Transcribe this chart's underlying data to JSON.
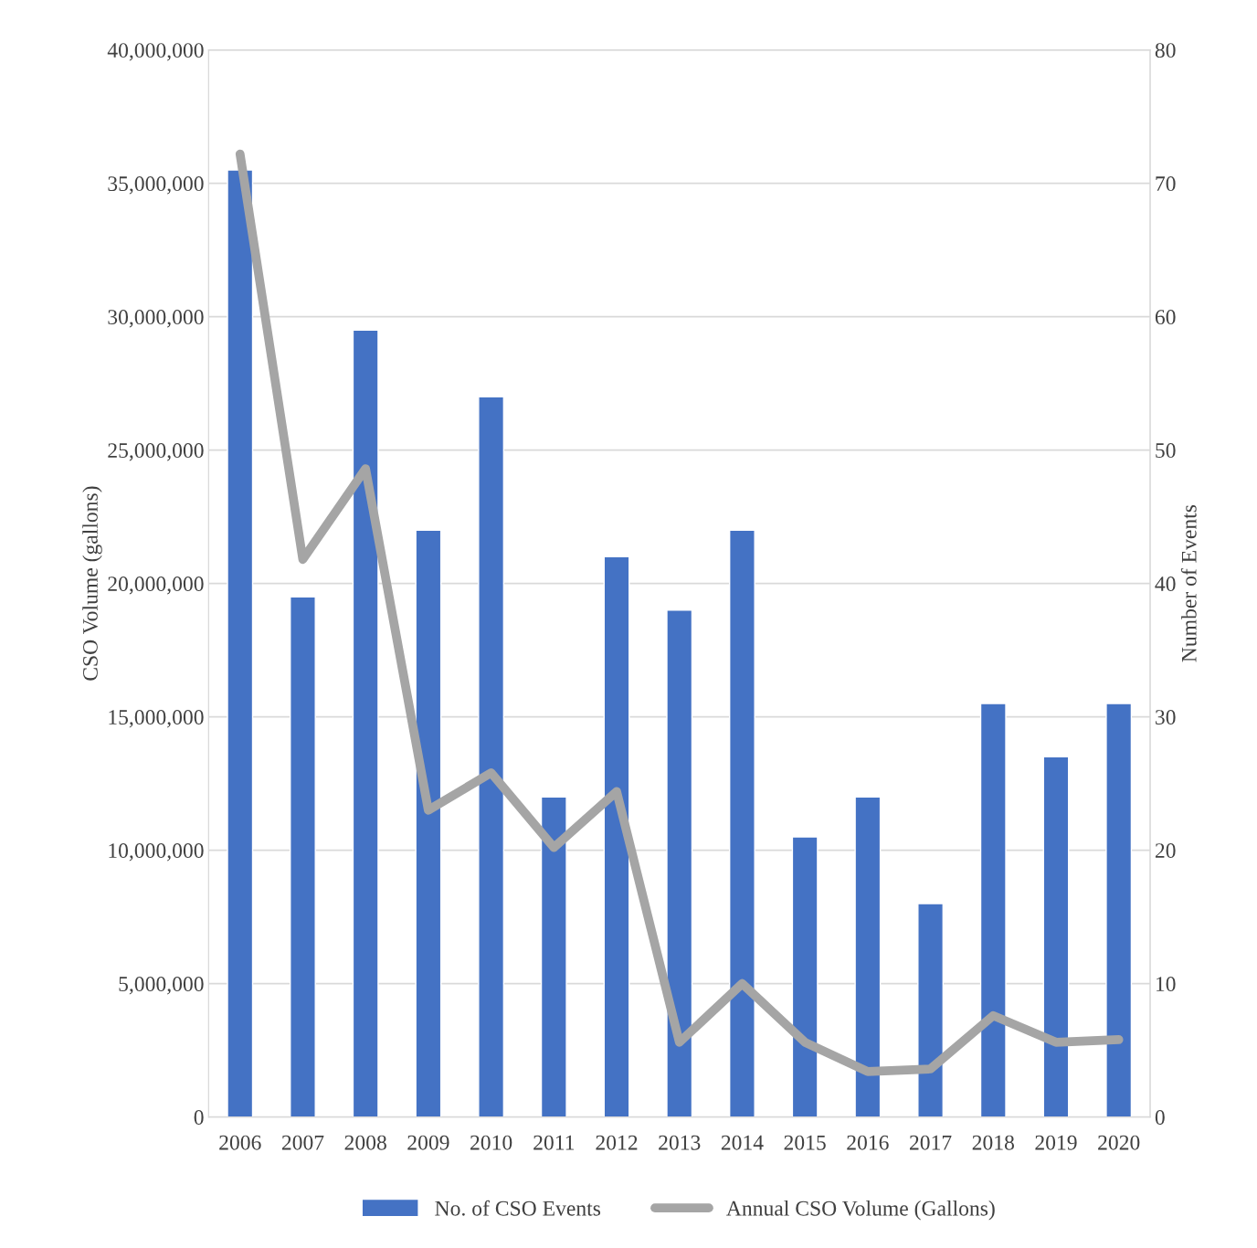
{
  "chart_data": {
    "type": "bar",
    "categories": [
      "2006",
      "2007",
      "2008",
      "2009",
      "2010",
      "2011",
      "2012",
      "2013",
      "2014",
      "2015",
      "2016",
      "2017",
      "2018",
      "2019",
      "2020"
    ],
    "series": [
      {
        "name": "No. of CSO Events",
        "axis": "y2",
        "color": "#4472c4",
        "values": [
          71,
          39,
          59,
          44,
          54,
          24,
          42,
          38,
          44,
          21,
          24,
          16,
          31,
          27,
          31
        ]
      },
      {
        "name": "Annual CSO Volume (Gallons)",
        "type": "line",
        "axis": "y",
        "color": "#a5a5a5",
        "values": [
          36100000,
          20900000,
          24300000,
          11500000,
          12900000,
          10100000,
          12200000,
          2800000,
          5000000,
          2800000,
          1700000,
          1800000,
          3800000,
          2800000,
          2900000
        ]
      }
    ],
    "ylabel": "CSO Volume (gallons)",
    "y2label": "Number of Events",
    "ylim": [
      0,
      40000000
    ],
    "yticks": [
      {
        "value": 0,
        "label": "0"
      },
      {
        "value": 5000000,
        "label": "5,000,000"
      },
      {
        "value": 10000000,
        "label": "10,000,000"
      },
      {
        "value": 15000000,
        "label": "15,000,000"
      },
      {
        "value": 20000000,
        "label": "20,000,000"
      },
      {
        "value": 25000000,
        "label": "25,000,000"
      },
      {
        "value": 30000000,
        "label": "30,000,000"
      },
      {
        "value": 35000000,
        "label": "35,000,000"
      },
      {
        "value": 40000000,
        "label": "40,000,000"
      }
    ],
    "y2lim": [
      0,
      80
    ],
    "y2ticks": [
      0,
      10,
      20,
      30,
      40,
      50,
      60,
      70,
      80
    ],
    "grid": true,
    "legend": "bottom",
    "line_style": "solid",
    "marker": "none"
  }
}
